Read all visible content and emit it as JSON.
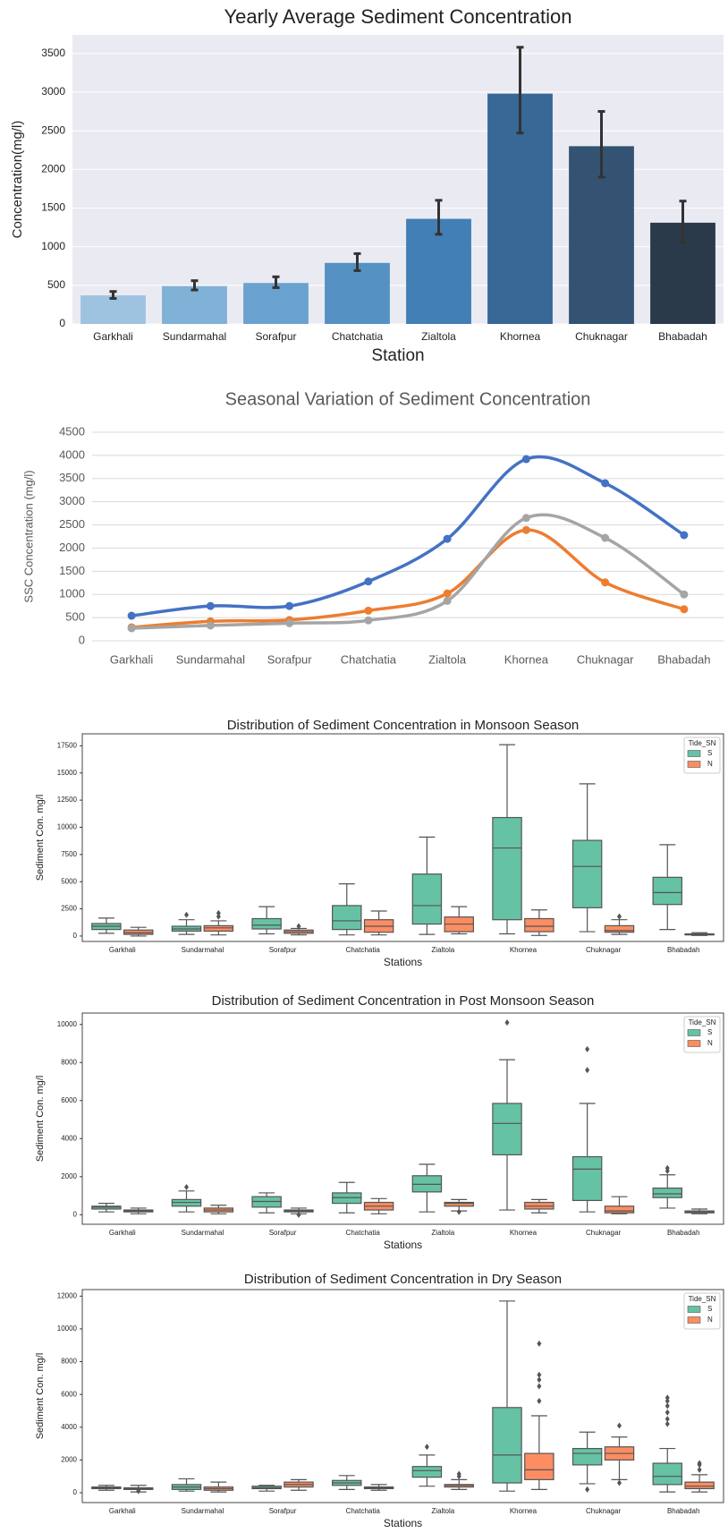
{
  "chart_data": [
    {
      "type": "bar",
      "title": "Yearly Average Sediment Concentration",
      "x_label": "Station",
      "y_label": "Concentration(mg/l)",
      "categories": [
        "Garkhali",
        "Sundarmahal",
        "Sorafpur",
        "Chatchatia",
        "Zialtola",
        "Khornea",
        "Chuknagar",
        "Bhabadah"
      ],
      "values": [
        370,
        490,
        530,
        790,
        1360,
        2980,
        2300,
        1310
      ],
      "errors": [
        [
          330,
          420
        ],
        [
          440,
          560
        ],
        [
          470,
          610
        ],
        [
          690,
          910
        ],
        [
          1160,
          1600
        ],
        [
          2470,
          3580
        ],
        [
          1900,
          2750
        ],
        [
          1060,
          1590
        ]
      ],
      "colors": [
        "#9dc3e0",
        "#80b1d6",
        "#6aa2cf",
        "#5592c3",
        "#417fb5",
        "#386895",
        "#345373",
        "#2b3a4a"
      ],
      "ylim": [
        0,
        3740
      ],
      "yticks": [
        0,
        500,
        1000,
        1500,
        2000,
        2500,
        3000,
        3500
      ],
      "grid": true
    },
    {
      "type": "line",
      "title": "Seasonal Variation of Sediment Concentration",
      "y_label": "SSC Concentration (mg/l)",
      "categories": [
        "Garkhali",
        "Sundarmahal",
        "Sorafpur",
        "Chatchatia",
        "Zialtola",
        "Khornea",
        "Chuknagar",
        "Bhabadah"
      ],
      "series": [
        {
          "color": "#4472c4",
          "values": [
            540,
            750,
            750,
            1280,
            2200,
            3920,
            3400,
            2280
          ]
        },
        {
          "color": "#ed7d31",
          "values": [
            290,
            420,
            450,
            650,
            1020,
            2390,
            1260,
            680
          ]
        },
        {
          "color": "#a5a5a5",
          "values": [
            270,
            330,
            380,
            440,
            860,
            2650,
            2220,
            1000
          ]
        }
      ],
      "ylim": [
        0,
        4500
      ],
      "yticks": [
        0,
        500,
        1000,
        1500,
        2000,
        2500,
        3000,
        3500,
        4000,
        4500
      ],
      "grid": true
    },
    {
      "type": "box",
      "title": "Distribution of Sediment Concentration in Monsoon Season",
      "x_label": "Stations",
      "y_label": "Sediment Con. mg/l",
      "legend_title": "Tide_SN",
      "categories": [
        "Garkhali",
        "Sundarmahal",
        "Sorafpur",
        "Chatchatia",
        "Zialtola",
        "Khornea",
        "Chuknagar",
        "Bhabadah"
      ],
      "series": [
        {
          "name": "S",
          "color": "#66c2a5",
          "boxes": [
            {
              "low": 250,
              "q1": 600,
              "median": 900,
              "q3": 1150,
              "high": 1650
            },
            {
              "low": 150,
              "q1": 450,
              "median": 650,
              "q3": 900,
              "high": 1500,
              "outliers": [
                1950
              ]
            },
            {
              "low": 200,
              "q1": 650,
              "median": 1000,
              "q3": 1600,
              "high": 2700
            },
            {
              "low": 100,
              "q1": 600,
              "median": 1400,
              "q3": 2800,
              "high": 4800
            },
            {
              "low": 150,
              "q1": 1100,
              "median": 2800,
              "q3": 5700,
              "high": 9100
            },
            {
              "low": 200,
              "q1": 1500,
              "median": 8100,
              "q3": 10900,
              "high": 17600
            },
            {
              "low": 400,
              "q1": 2600,
              "median": 6400,
              "q3": 8800,
              "high": 14000
            },
            {
              "low": 600,
              "q1": 2900,
              "median": 4000,
              "q3": 5400,
              "high": 8400
            }
          ]
        },
        {
          "name": "N",
          "color": "#fc8d62",
          "boxes": [
            {
              "low": 0,
              "q1": 150,
              "median": 300,
              "q3": 550,
              "high": 800
            },
            {
              "low": 100,
              "q1": 450,
              "median": 750,
              "q3": 950,
              "high": 1400,
              "outliers": [
                1800,
                2100
              ]
            },
            {
              "low": 100,
              "q1": 250,
              "median": 400,
              "q3": 550,
              "high": 700,
              "outliers": [
                900
              ]
            },
            {
              "low": 100,
              "q1": 350,
              "median": 900,
              "q3": 1500,
              "high": 2300
            },
            {
              "low": 200,
              "q1": 400,
              "median": 1100,
              "q3": 1750,
              "high": 2700
            },
            {
              "low": 50,
              "q1": 400,
              "median": 900,
              "q3": 1600,
              "high": 2400
            },
            {
              "low": 150,
              "q1": 350,
              "median": 500,
              "q3": 950,
              "high": 1500,
              "outliers": [
                1800
              ]
            },
            {
              "low": 50,
              "q1": 100,
              "median": 150,
              "q3": 200,
              "high": 300
            }
          ]
        }
      ],
      "ylim": [
        -500,
        18600
      ],
      "yticks": [
        0,
        2500,
        5000,
        7500,
        10000,
        12500,
        15000,
        17500
      ]
    },
    {
      "type": "box",
      "title": "Distribution of Sediment Concentration in Post Monsoon Season",
      "x_label": "Stations",
      "y_label": "Sediment Con. mg/l",
      "legend_title": "Tide_SN",
      "categories": [
        "Garkhali",
        "Sundarmahal",
        "Sorafpur",
        "Chatchatia",
        "Zialtola",
        "Khornea",
        "Chuknagar",
        "Bhabadah"
      ],
      "series": [
        {
          "name": "S",
          "color": "#66c2a5",
          "boxes": [
            {
              "low": 150,
              "q1": 300,
              "median": 400,
              "q3": 450,
              "high": 600
            },
            {
              "low": 150,
              "q1": 450,
              "median": 650,
              "q3": 800,
              "high": 1250,
              "outliers": [
                1450
              ]
            },
            {
              "low": 100,
              "q1": 400,
              "median": 700,
              "q3": 950,
              "high": 1150
            },
            {
              "low": 100,
              "q1": 600,
              "median": 900,
              "q3": 1150,
              "high": 1700
            },
            {
              "low": 150,
              "q1": 1200,
              "median": 1600,
              "q3": 2050,
              "high": 2650
            },
            {
              "low": 250,
              "q1": 3150,
              "median": 4800,
              "q3": 5850,
              "high": 8150,
              "outliers": [
                10100
              ]
            },
            {
              "low": 150,
              "q1": 750,
              "median": 2400,
              "q3": 3050,
              "high": 5850,
              "outliers": [
                7600,
                8700
              ]
            },
            {
              "low": 350,
              "q1": 900,
              "median": 1100,
              "q3": 1400,
              "high": 2100,
              "outliers": [
                2300,
                2450
              ]
            }
          ]
        },
        {
          "name": "N",
          "color": "#fc8d62",
          "boxes": [
            {
              "low": 50,
              "q1": 150,
              "median": 200,
              "q3": 250,
              "high": 350
            },
            {
              "low": 50,
              "q1": 150,
              "median": 250,
              "q3": 350,
              "high": 500
            },
            {
              "low": 50,
              "q1": 150,
              "median": 200,
              "q3": 250,
              "high": 350,
              "outliers": [
                0
              ]
            },
            {
              "low": 50,
              "q1": 250,
              "median": 450,
              "q3": 650,
              "high": 850
            },
            {
              "low": 200,
              "q1": 450,
              "median": 600,
              "q3": 650,
              "high": 800,
              "outliers": [
                150
              ]
            },
            {
              "low": 100,
              "q1": 300,
              "median": 450,
              "q3": 650,
              "high": 800
            },
            {
              "low": 50,
              "q1": 100,
              "median": 200,
              "q3": 450,
              "high": 950
            },
            {
              "low": 50,
              "q1": 100,
              "median": 150,
              "q3": 200,
              "high": 300
            }
          ]
        }
      ],
      "ylim": [
        -500,
        10600
      ],
      "yticks": [
        0,
        2000,
        4000,
        6000,
        8000,
        10000
      ]
    },
    {
      "type": "box",
      "title": "Distribution of Sediment Concentration in Dry Season",
      "x_label": "Stations",
      "y_label": "Sediment Con. mg/l",
      "legend_title": "Tide_SN",
      "categories": [
        "Garkhali",
        "Sundarmahal",
        "Sorafpur",
        "Chatchatia",
        "Zialtola",
        "Khornea",
        "Chuknagar",
        "Bhabadah"
      ],
      "series": [
        {
          "name": "S",
          "color": "#66c2a5",
          "boxes": [
            {
              "low": 150,
              "q1": 250,
              "median": 300,
              "q3": 350,
              "high": 450
            },
            {
              "low": 100,
              "q1": 200,
              "median": 350,
              "q3": 500,
              "high": 850
            },
            {
              "low": 100,
              "q1": 250,
              "median": 300,
              "q3": 400,
              "high": 450
            },
            {
              "low": 200,
              "q1": 450,
              "median": 600,
              "q3": 750,
              "high": 1050
            },
            {
              "low": 400,
              "q1": 950,
              "median": 1350,
              "q3": 1600,
              "high": 2300,
              "outliers": [
                2800
              ]
            },
            {
              "low": 100,
              "q1": 600,
              "median": 2300,
              "q3": 5200,
              "high": 11700
            },
            {
              "low": 550,
              "q1": 1700,
              "median": 2400,
              "q3": 2700,
              "high": 3700,
              "outliers": [
                200
              ]
            },
            {
              "low": 50,
              "q1": 500,
              "median": 1000,
              "q3": 1800,
              "high": 2700,
              "outliers": [
                4200,
                4500,
                4900,
                5300,
                5600,
                5800
              ]
            }
          ]
        },
        {
          "name": "N",
          "color": "#fc8d62",
          "boxes": [
            {
              "low": 50,
              "q1": 200,
              "median": 250,
              "q3": 300,
              "high": 450,
              "outliers": [
                100
              ]
            },
            {
              "low": 50,
              "q1": 150,
              "median": 250,
              "q3": 350,
              "high": 650
            },
            {
              "low": 150,
              "q1": 350,
              "median": 500,
              "q3": 650,
              "high": 800
            },
            {
              "low": 150,
              "q1": 250,
              "median": 300,
              "q3": 350,
              "high": 500
            },
            {
              "low": 200,
              "q1": 350,
              "median": 450,
              "q3": 500,
              "high": 800,
              "outliers": [
                1000,
                1150
              ]
            },
            {
              "low": 200,
              "q1": 800,
              "median": 1400,
              "q3": 2400,
              "high": 4700,
              "outliers": [
                5600,
                6500,
                6900,
                7200,
                9100
              ]
            },
            {
              "low": 800,
              "q1": 2000,
              "median": 2400,
              "q3": 2800,
              "high": 3400,
              "outliers": [
                4100,
                600
              ]
            },
            {
              "low": 50,
              "q1": 250,
              "median": 400,
              "q3": 650,
              "high": 1100,
              "outliers": [
                1400,
                1700,
                1800
              ]
            }
          ]
        }
      ],
      "ylim": [
        -600,
        12400
      ],
      "yticks": [
        0,
        2000,
        4000,
        6000,
        8000,
        10000,
        12000
      ]
    }
  ]
}
